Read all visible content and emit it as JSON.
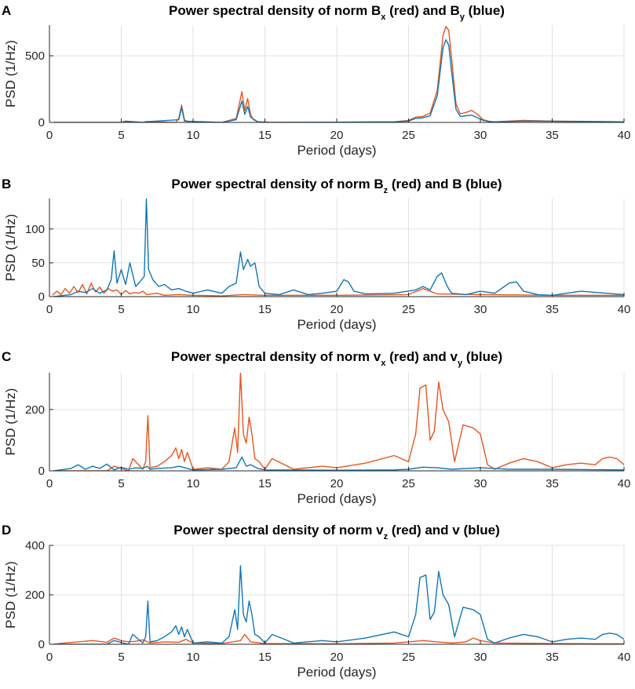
{
  "colors": {
    "red": "#e6561f",
    "blue": "#0f77b8"
  },
  "chart_data": [
    {
      "letter": "A",
      "type": "line",
      "title_parts": [
        "Power spectral density of norm B",
        "x",
        " (red) and B",
        "y",
        " (blue)"
      ],
      "xlabel": "Period (days)",
      "ylabel": "PSD (1/Hz)",
      "xlim": [
        0,
        40
      ],
      "ylim": [
        0,
        730
      ],
      "xticks": [
        0,
        5,
        10,
        15,
        20,
        25,
        30,
        35,
        40
      ],
      "yticks": [
        0,
        500
      ],
      "grid": true,
      "series": [
        {
          "name": "norm Bx",
          "color": "red",
          "x": [
            0.3,
            5,
            5.3,
            6.5,
            6.7,
            8.8,
            9.0,
            9.2,
            9.4,
            9.7,
            12,
            13.0,
            13.4,
            13.6,
            13.8,
            14.0,
            14.2,
            14.5,
            15,
            15.5,
            20,
            24,
            25,
            25.5,
            26,
            26.5,
            27.0,
            27.4,
            27.6,
            27.8,
            28.0,
            28.3,
            28.6,
            29.0,
            29.4,
            29.8,
            30.2,
            30.6,
            31,
            33,
            35,
            40
          ],
          "y": [
            0,
            0,
            10,
            0,
            6,
            0,
            30,
            130,
            20,
            0,
            0,
            30,
            230,
            90,
            180,
            60,
            20,
            5,
            3,
            0,
            2,
            5,
            15,
            40,
            45,
            70,
            240,
            650,
            720,
            690,
            480,
            140,
            65,
            75,
            90,
            60,
            20,
            8,
            5,
            15,
            10,
            5
          ]
        },
        {
          "name": "norm By",
          "color": "blue",
          "x": [
            0.3,
            5,
            5.3,
            6.5,
            6.7,
            9.0,
            9.2,
            9.4,
            12,
            13.0,
            13.4,
            13.6,
            13.8,
            14.0,
            14.5,
            15,
            20,
            24,
            25,
            25.5,
            26,
            26.5,
            27.0,
            27.4,
            27.6,
            27.8,
            28.0,
            28.3,
            28.6,
            29.0,
            29.4,
            29.8,
            30.2,
            30.6,
            31,
            33,
            35,
            40
          ],
          "y": [
            0,
            0,
            8,
            0,
            5,
            20,
            110,
            10,
            0,
            20,
            160,
            60,
            120,
            40,
            5,
            0,
            2,
            4,
            10,
            30,
            35,
            50,
            200,
            560,
            620,
            580,
            380,
            100,
            45,
            50,
            55,
            35,
            15,
            6,
            4,
            10,
            8,
            4
          ]
        }
      ]
    },
    {
      "letter": "B",
      "type": "line",
      "title_parts": [
        "Power spectral density of norm B",
        "z",
        " (red) and B (blue)"
      ],
      "xlabel": "Period (days)",
      "ylabel": "PSD (1/Hz)",
      "xlim": [
        0,
        40
      ],
      "ylim": [
        0,
        145
      ],
      "xticks": [
        0,
        5,
        10,
        15,
        20,
        25,
        30,
        35,
        40
      ],
      "yticks": [
        0,
        50,
        100
      ],
      "grid": true,
      "series": [
        {
          "name": "norm Bz",
          "color": "red",
          "x": [
            0.2,
            0.5,
            0.8,
            1.1,
            1.4,
            1.7,
            2.0,
            2.3,
            2.6,
            2.9,
            3.2,
            3.5,
            3.8,
            4.1,
            4.4,
            4.7,
            5.0,
            5.3,
            5.6,
            5.9,
            6.2,
            6.5,
            6.8,
            7.1,
            7.5,
            8,
            9,
            10,
            12,
            13.5,
            15,
            20,
            25,
            26,
            27,
            30,
            35,
            40
          ],
          "y": [
            2,
            8,
            3,
            12,
            5,
            15,
            6,
            18,
            4,
            20,
            7,
            14,
            5,
            12,
            8,
            10,
            3,
            9,
            4,
            6,
            5,
            8,
            3,
            4,
            5,
            2,
            3,
            2,
            1,
            3,
            2,
            2,
            3,
            12,
            4,
            3,
            2,
            2
          ]
        },
        {
          "name": "norm B",
          "color": "blue",
          "x": [
            0.3,
            1.5,
            2.0,
            2.5,
            3.0,
            3.5,
            4.0,
            4.3,
            4.5,
            4.7,
            5.0,
            5.3,
            5.6,
            6.0,
            6.3,
            6.6,
            6.75,
            6.9,
            7.2,
            7.6,
            8.0,
            8.5,
            9.0,
            9.5,
            10,
            11,
            12,
            12.5,
            13.0,
            13.3,
            13.5,
            13.8,
            14.0,
            14.3,
            14.6,
            15,
            16,
            17,
            18,
            19,
            20,
            20.5,
            20.8,
            21.2,
            22,
            24,
            25.5,
            26,
            26.5,
            27.0,
            27.3,
            27.7,
            28,
            29,
            30,
            31,
            32.0,
            32.5,
            33,
            34,
            35,
            37,
            40
          ],
          "y": [
            0,
            3,
            8,
            6,
            12,
            5,
            10,
            25,
            68,
            20,
            40,
            18,
            50,
            15,
            22,
            30,
            145,
            40,
            25,
            15,
            18,
            10,
            12,
            8,
            5,
            10,
            5,
            15,
            20,
            66,
            40,
            55,
            45,
            50,
            15,
            5,
            3,
            10,
            3,
            5,
            8,
            25,
            22,
            8,
            4,
            5,
            10,
            15,
            10,
            30,
            35,
            15,
            5,
            3,
            8,
            5,
            20,
            22,
            8,
            3,
            2,
            8,
            3
          ]
        }
      ]
    },
    {
      "letter": "C",
      "type": "line",
      "title_parts": [
        "Power spectral density of norm v",
        "x",
        " (red) and v",
        "y",
        " (blue)"
      ],
      "xlabel": "Period (days)",
      "ylabel": "PSD (1/Hz)",
      "xlim": [
        0,
        40
      ],
      "ylim": [
        0,
        320
      ],
      "xticks": [
        0,
        5,
        10,
        15,
        20,
        25,
        30,
        35,
        40
      ],
      "yticks": [
        0,
        200
      ],
      "grid": true,
      "series": [
        {
          "name": "norm vx",
          "color": "red",
          "x": [
            0.3,
            4.0,
            4.5,
            5.5,
            5.8,
            6.5,
            6.7,
            6.85,
            7.0,
            7.5,
            8.0,
            8.5,
            8.8,
            9.0,
            9.2,
            9.4,
            9.6,
            10,
            11,
            12,
            12.5,
            12.9,
            13.1,
            13.3,
            13.5,
            13.7,
            13.9,
            14.1,
            14.3,
            14.6,
            15.0,
            15.5,
            17,
            19,
            20,
            22,
            24,
            25,
            25.5,
            25.8,
            26.2,
            26.5,
            26.8,
            27.1,
            27.4,
            27.8,
            28.2,
            28.8,
            29.5,
            30.0,
            30.5,
            31,
            32,
            33,
            34,
            35,
            36,
            37,
            38,
            38.5,
            39,
            39.5,
            40
          ],
          "y": [
            0,
            0,
            15,
            0,
            40,
            5,
            30,
            180,
            10,
            15,
            30,
            50,
            75,
            40,
            70,
            30,
            60,
            5,
            10,
            5,
            30,
            140,
            60,
            320,
            120,
            90,
            175,
            120,
            40,
            30,
            5,
            40,
            5,
            15,
            10,
            25,
            50,
            30,
            120,
            270,
            280,
            100,
            130,
            290,
            200,
            160,
            30,
            150,
            140,
            120,
            20,
            5,
            25,
            40,
            30,
            10,
            20,
            25,
            20,
            40,
            45,
            40,
            20
          ]
        },
        {
          "name": "norm vy",
          "color": "blue",
          "x": [
            0.3,
            1.5,
            2.0,
            2.5,
            3.0,
            3.5,
            4.0,
            4.5,
            5.0,
            5.5,
            6.0,
            6.5,
            6.8,
            7.0,
            7.5,
            8.5,
            9.0,
            10,
            12,
            13.0,
            13.4,
            13.7,
            14.0,
            14.5,
            15,
            20,
            24,
            25,
            26,
            27,
            28,
            30,
            32,
            35,
            40
          ],
          "y": [
            0,
            8,
            20,
            5,
            15,
            8,
            22,
            3,
            12,
            5,
            10,
            8,
            15,
            5,
            8,
            10,
            15,
            3,
            5,
            10,
            45,
            15,
            20,
            8,
            3,
            2,
            3,
            5,
            12,
            10,
            5,
            10,
            5,
            5,
            3
          ]
        }
      ]
    },
    {
      "letter": "D",
      "type": "line",
      "title_parts": [
        "Power spectral density of norm v",
        "z",
        " (red) and v (blue)"
      ],
      "xlabel": "Period (days)",
      "ylabel": "PSD (1/Hz)",
      "xlim": [
        0,
        40
      ],
      "ylim": [
        0,
        400
      ],
      "xticks": [
        0,
        5,
        10,
        15,
        20,
        25,
        30,
        35,
        40
      ],
      "yticks": [
        0,
        200,
        400
      ],
      "grid": true,
      "series": [
        {
          "name": "norm vz",
          "color": "red",
          "x": [
            0.3,
            1,
            2,
            3,
            4,
            4.5,
            5,
            5.5,
            6,
            6.5,
            7,
            8,
            9,
            9.5,
            10,
            12,
            13.3,
            13.6,
            14,
            15,
            20,
            24,
            25,
            26,
            27,
            28,
            29,
            29.5,
            30,
            31,
            35,
            40
          ],
          "y": [
            0,
            5,
            10,
            15,
            8,
            25,
            15,
            10,
            12,
            18,
            5,
            10,
            8,
            20,
            5,
            3,
            15,
            40,
            10,
            3,
            2,
            5,
            10,
            15,
            10,
            5,
            10,
            25,
            15,
            5,
            3,
            2
          ]
        },
        {
          "name": "norm v",
          "color": "blue",
          "x": [
            0.3,
            4.0,
            4.5,
            5.5,
            5.8,
            6.5,
            6.7,
            6.85,
            7.0,
            7.5,
            8.0,
            8.5,
            8.8,
            9.0,
            9.2,
            9.4,
            9.6,
            10,
            11,
            12,
            12.5,
            12.9,
            13.1,
            13.3,
            13.5,
            13.7,
            13.9,
            14.1,
            14.3,
            14.6,
            15.0,
            15.5,
            17,
            19,
            20,
            22,
            24,
            25,
            25.5,
            25.8,
            26.2,
            26.5,
            26.8,
            27.1,
            27.4,
            27.8,
            28.2,
            28.8,
            29.5,
            30.0,
            30.5,
            31,
            32,
            33,
            34,
            35,
            36,
            37,
            38,
            38.5,
            39,
            39.5,
            40
          ],
          "y": [
            0,
            0,
            15,
            0,
            40,
            5,
            30,
            175,
            10,
            15,
            30,
            50,
            75,
            40,
            70,
            30,
            60,
            5,
            10,
            5,
            30,
            140,
            60,
            318,
            120,
            90,
            175,
            120,
            40,
            30,
            5,
            40,
            5,
            15,
            10,
            25,
            50,
            30,
            120,
            270,
            280,
            100,
            130,
            295,
            200,
            160,
            30,
            150,
            140,
            120,
            20,
            5,
            25,
            40,
            30,
            10,
            20,
            25,
            20,
            40,
            45,
            40,
            20
          ]
        }
      ]
    }
  ]
}
